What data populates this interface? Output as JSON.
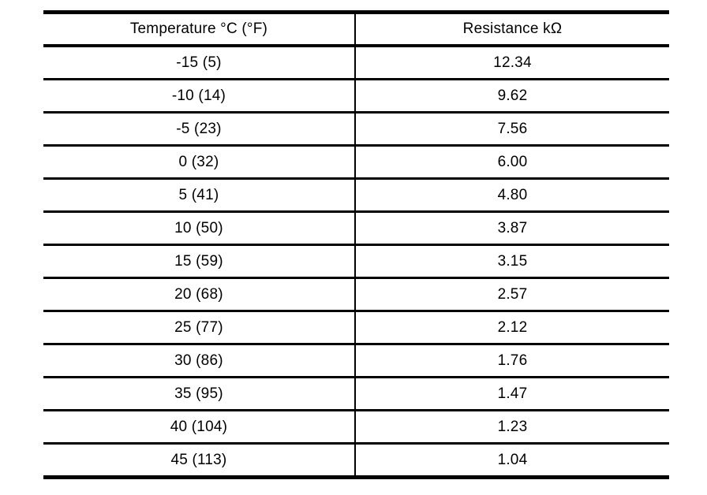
{
  "table": {
    "columns": [
      "Temperature °C (°F)",
      "Resistance kΩ"
    ],
    "rows": [
      [
        "-15 (5)",
        "12.34"
      ],
      [
        "-10 (14)",
        "9.62"
      ],
      [
        "-5 (23)",
        "7.56"
      ],
      [
        "0 (32)",
        "6.00"
      ],
      [
        "5 (41)",
        "4.80"
      ],
      [
        "10 (50)",
        "3.87"
      ],
      [
        "15 (59)",
        "3.15"
      ],
      [
        "20 (68)",
        "2.57"
      ],
      [
        "25 (77)",
        "2.12"
      ],
      [
        "30 (86)",
        "1.76"
      ],
      [
        "35 (95)",
        "1.47"
      ],
      [
        "40 (104)",
        "1.23"
      ],
      [
        "45 (113)",
        "1.04"
      ]
    ]
  }
}
